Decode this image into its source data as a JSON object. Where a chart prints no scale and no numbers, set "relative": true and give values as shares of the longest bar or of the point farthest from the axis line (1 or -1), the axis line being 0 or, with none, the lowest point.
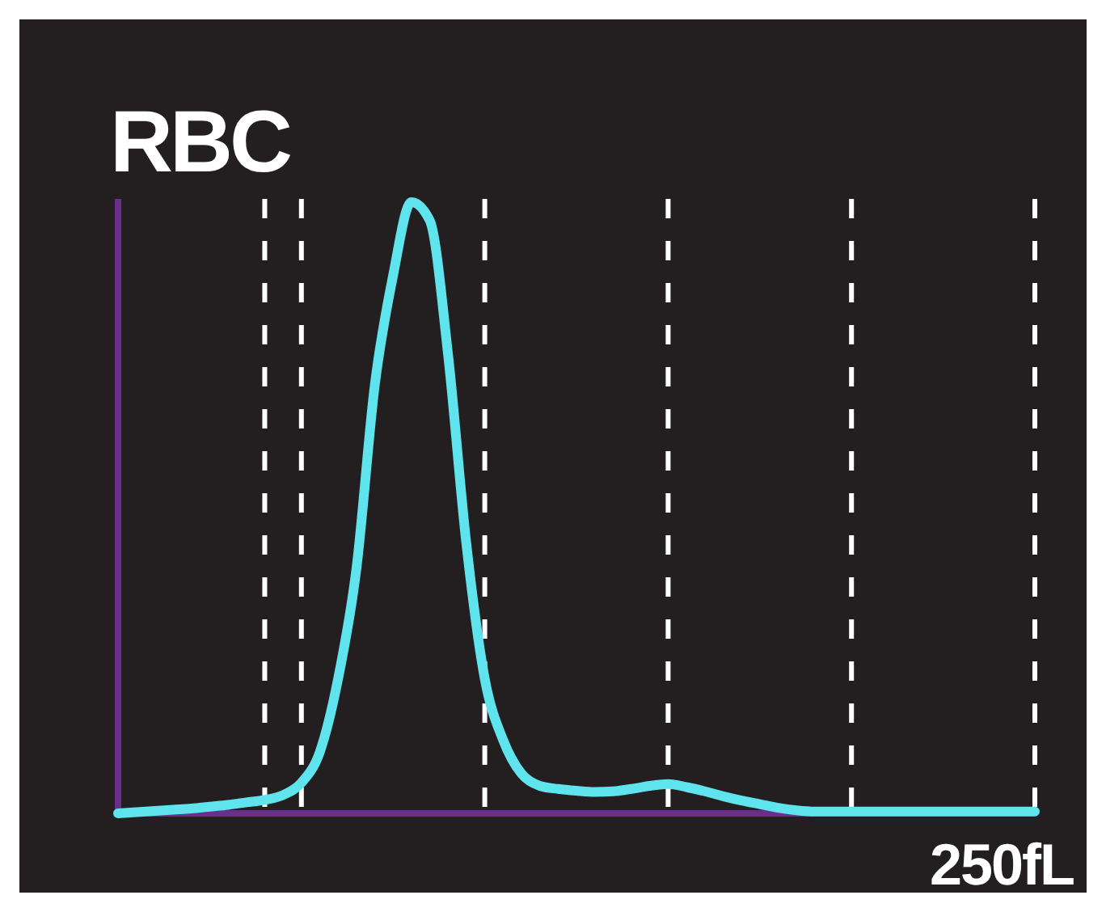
{
  "chart_data": {
    "type": "line",
    "title": "RBC",
    "relative": true,
    "annotations": [
      "250fL"
    ],
    "categories": [
      null,
      null,
      null,
      null,
      null,
      null,
      null,
      null,
      null,
      null,
      null,
      null,
      null,
      null,
      null,
      null,
      null,
      null,
      null,
      null,
      null,
      null,
      null,
      null,
      null,
      null,
      null,
      null,
      null,
      null,
      null,
      null,
      null,
      null,
      null,
      null,
      null,
      null,
      null,
      null,
      null,
      null,
      null,
      null,
      null,
      null,
      null,
      null,
      null,
      null,
      null
    ],
    "series": [
      {
        "color": "#5fe3ec",
        "values": [
          0,
          0.002,
          0.004,
          0.006,
          0.008,
          0.011,
          0.014,
          0.018,
          0.022,
          0.03,
          0.05,
          0.1,
          0.22,
          0.4,
          0.7,
          0.88,
          1,
          0.97,
          0.75,
          0.44,
          0.22,
          0.12,
          0.065,
          0.045,
          0.04,
          0.037,
          0.035,
          0.036,
          0.04,
          0.045,
          0.048,
          0.043,
          0.036,
          0.028,
          0.021,
          0.015,
          0.009,
          0.005,
          0.003,
          0.003,
          0.003,
          0.003,
          0.003,
          0.003,
          0.003,
          0.003,
          0.003,
          0.003,
          0.003,
          0.003,
          0.003
        ]
      }
    ],
    "grid": "x",
    "line_style": "solid"
  }
}
